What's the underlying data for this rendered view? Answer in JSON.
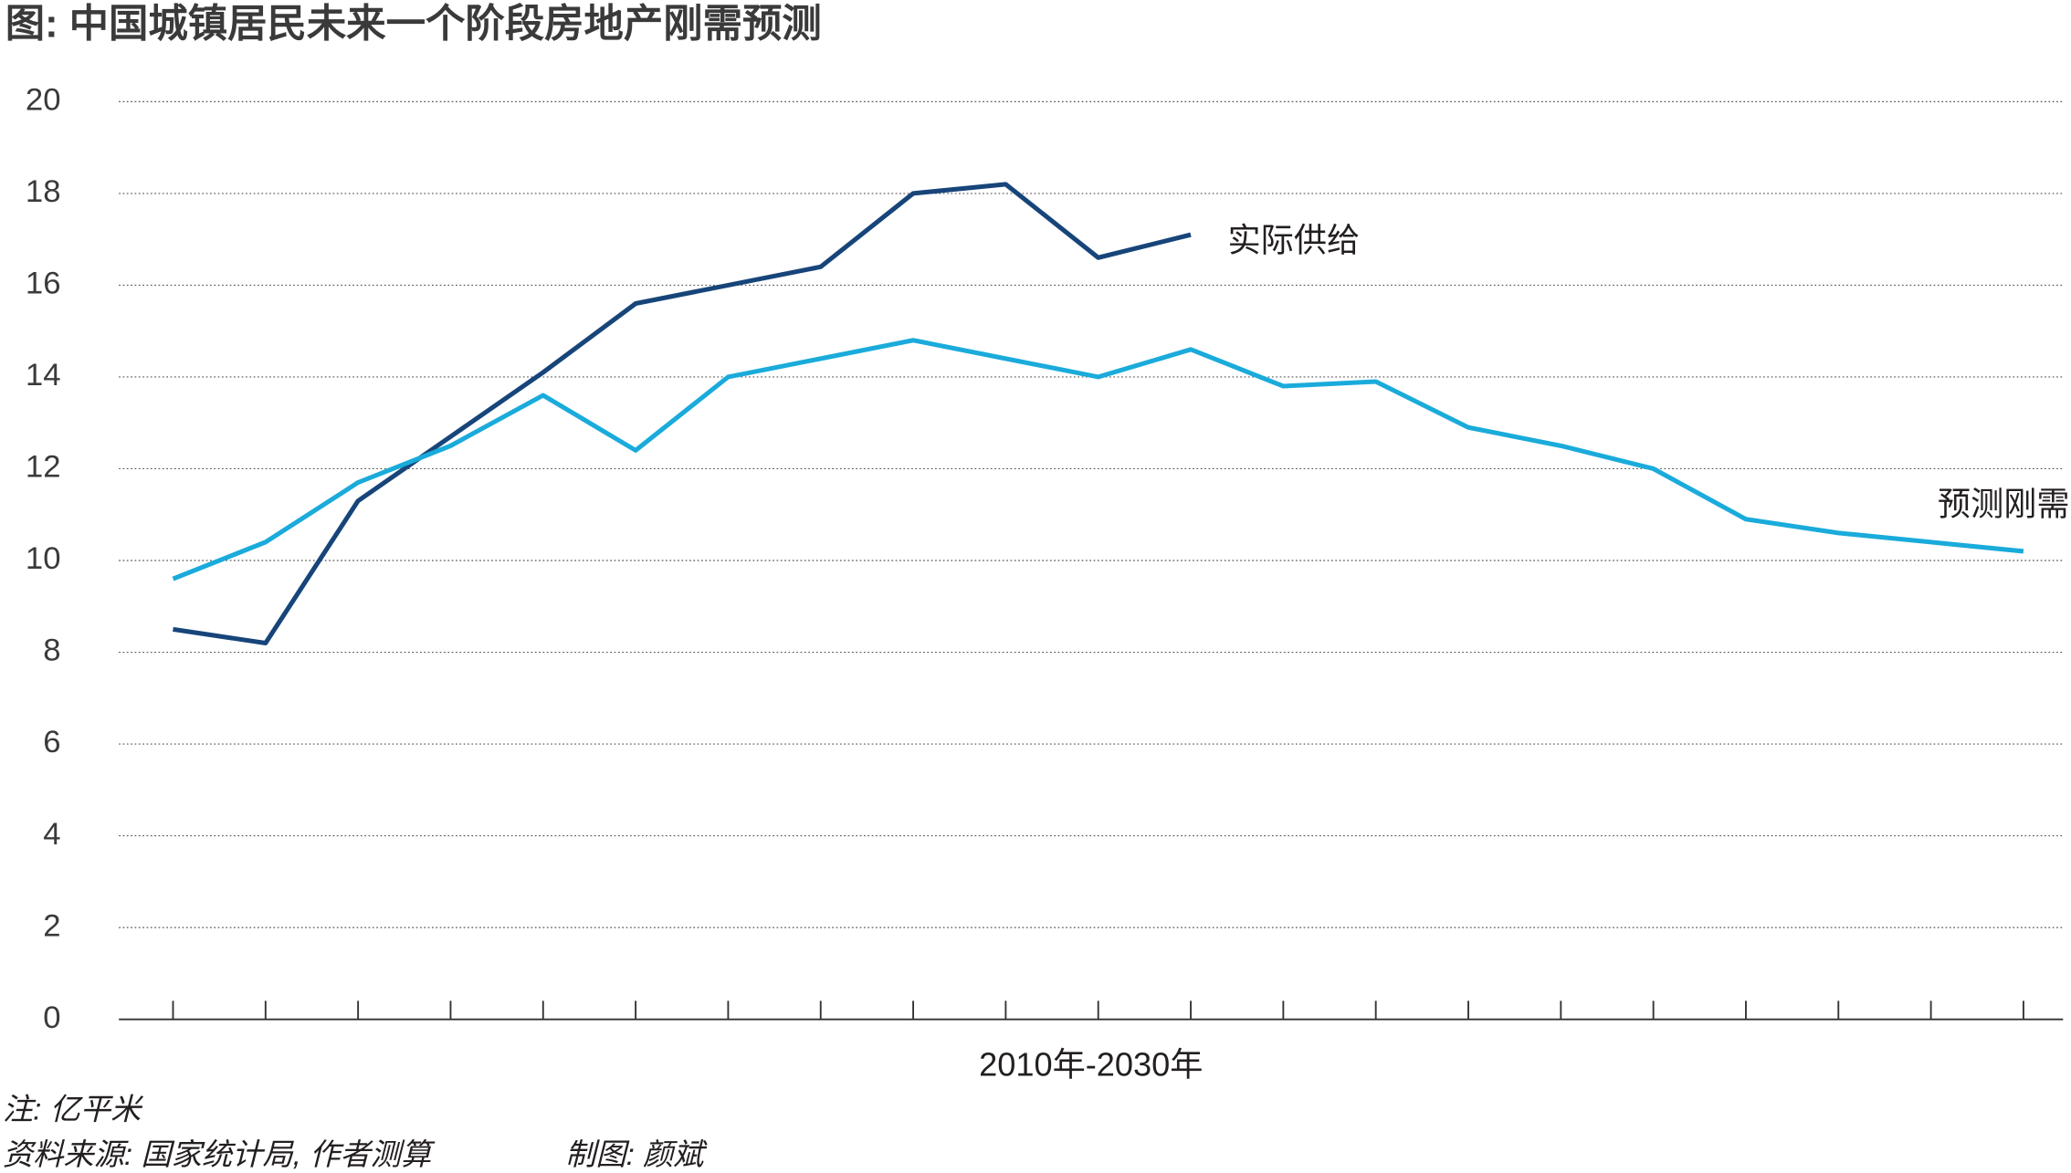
{
  "chart_data": {
    "type": "line",
    "title": "图: 中国城镇居民未来一个阶段房地产刚需预测",
    "x_label": "2010年-2030年",
    "categories": [
      null,
      null,
      null,
      null,
      null,
      null,
      null,
      null,
      null,
      null,
      null,
      null,
      null,
      null,
      null,
      null,
      null,
      null,
      null,
      null,
      null
    ],
    "series": [
      {
        "name": "实际供给",
        "color": "#17457a",
        "values": [
          8.5,
          8.2,
          11.3,
          12.7,
          14.1,
          15.6,
          16.0,
          16.4,
          18.0,
          18.2,
          16.6,
          17.1,
          null,
          null,
          null,
          null,
          null,
          null,
          null,
          null,
          null
        ]
      },
      {
        "name": "预测刚需",
        "color": "#1aabdb",
        "values": [
          9.6,
          10.4,
          11.7,
          12.5,
          13.6,
          12.4,
          14.0,
          14.4,
          14.8,
          14.4,
          14.0,
          14.6,
          13.8,
          13.9,
          12.9,
          12.5,
          12.0,
          10.9,
          10.6,
          10.4,
          10.2
        ]
      }
    ],
    "ylim": [
      0,
      20
    ],
    "yticks": [
      0,
      2,
      4,
      6,
      8,
      10,
      12,
      14,
      16,
      18,
      20
    ],
    "grid": true,
    "notes": [
      "注: 亿平米",
      "资料来源: 国家统计局, 作者测算",
      "制图: 颜斌"
    ]
  }
}
